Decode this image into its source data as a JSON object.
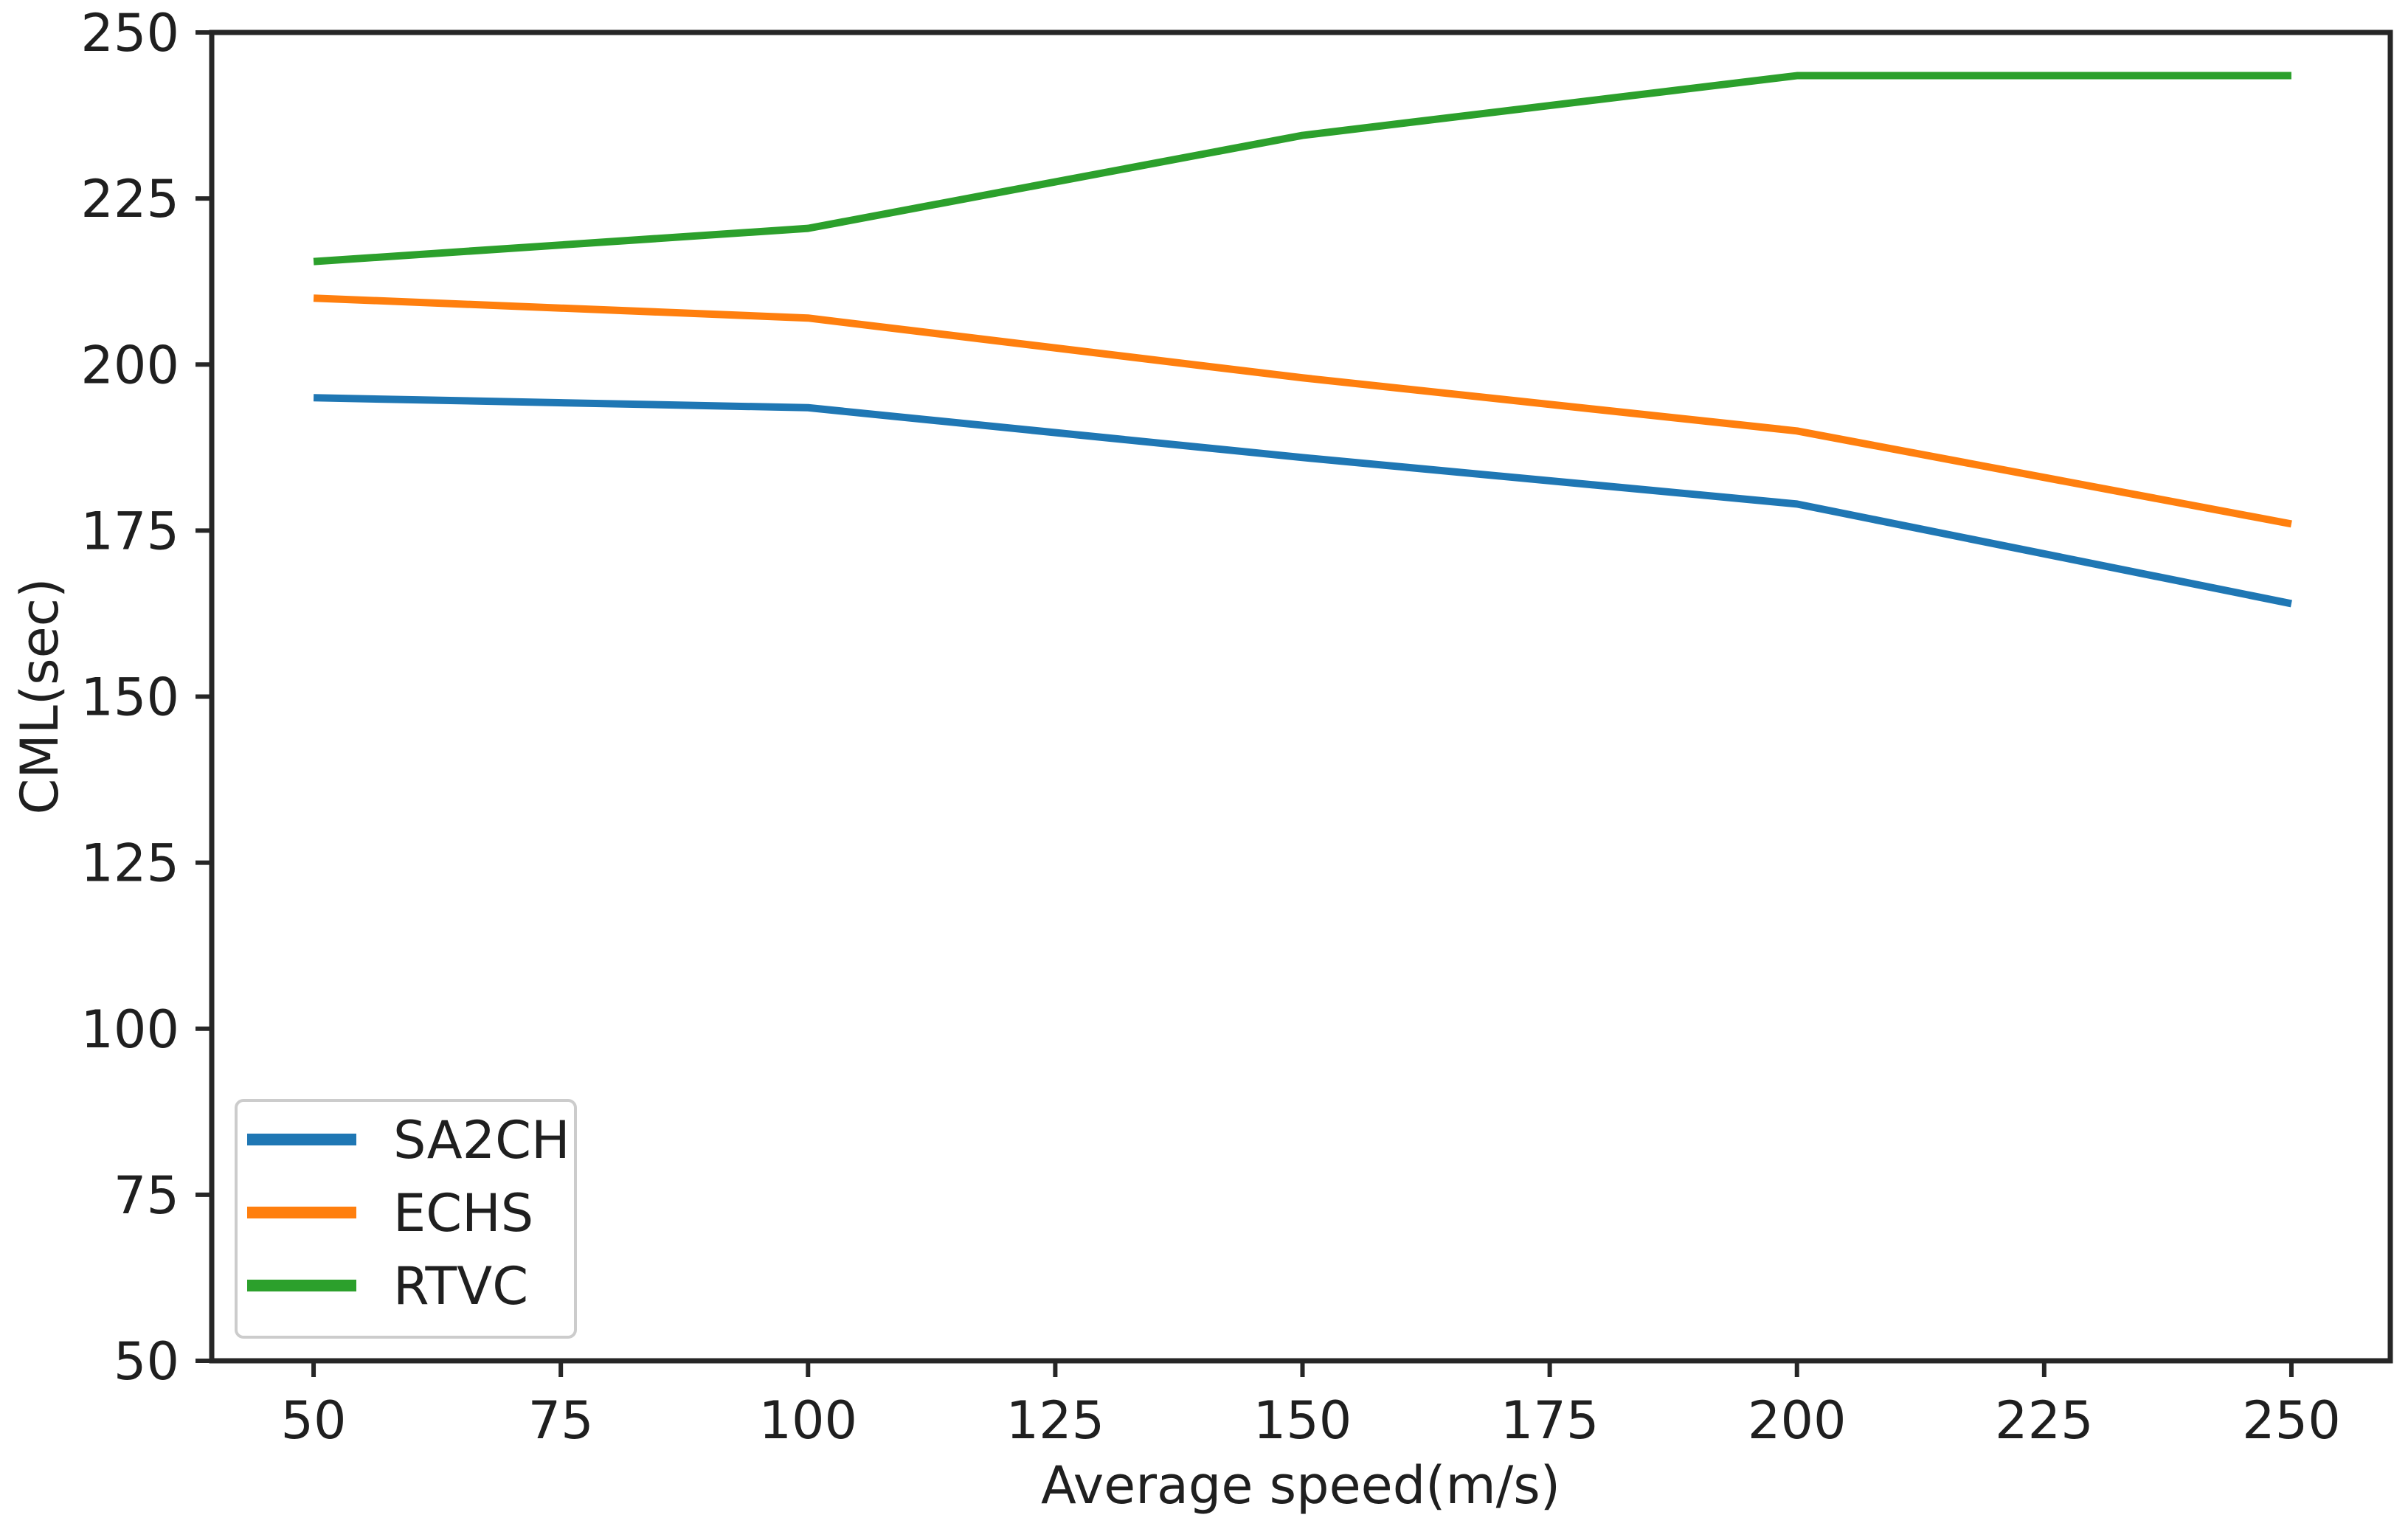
{
  "chart_data": {
    "type": "line",
    "title": "",
    "xlabel": "Average speed(m/s)",
    "ylabel": "CML(sec)",
    "x": [
      50,
      100,
      150,
      200,
      250
    ],
    "series": [
      {
        "name": "SA2CH",
        "color": "#1f77b4",
        "values": [
          195,
          193.5,
          186,
          179,
          164
        ]
      },
      {
        "name": "ECHS",
        "color": "#ff7f0e",
        "values": [
          210,
          207,
          198,
          190,
          176
        ]
      },
      {
        "name": "RTVC",
        "color": "#2ca02c",
        "values": [
          215.5,
          220.5,
          234.5,
          243.5,
          243.5
        ]
      }
    ],
    "xticks": [
      50,
      75,
      100,
      125,
      150,
      175,
      200,
      225,
      250
    ],
    "yticks": [
      50,
      75,
      100,
      125,
      150,
      175,
      200,
      225,
      250
    ],
    "xlim": [
      39.7,
      260.0
    ],
    "ylim": [
      50,
      250
    ],
    "grid": false,
    "legend": {
      "position": "lower-left",
      "entries": [
        "SA2CH",
        "ECHS",
        "RTVC"
      ]
    },
    "axis_color": "#262626",
    "text_color": "#1f1f1f",
    "background_color": "#ffffff",
    "legend_border_color": "#cccccc"
  }
}
